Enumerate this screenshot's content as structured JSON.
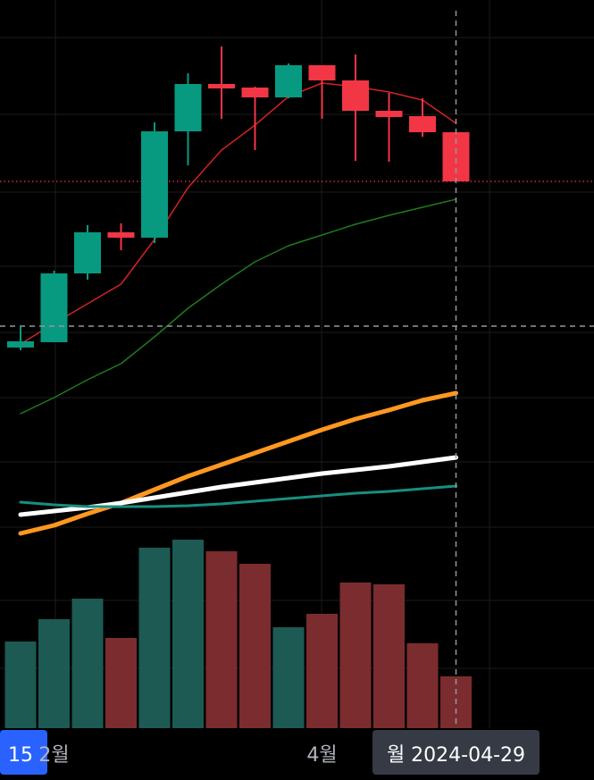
{
  "chart_data": {
    "type": "candlestick",
    "categories": [
      "15",
      "2월",
      null,
      null,
      null,
      null,
      null,
      null,
      null,
      "4월",
      null,
      null,
      null,
      "월 2024-04-29"
    ],
    "open": [
      426,
      432,
      509,
      555,
      549,
      668,
      721,
      717,
      706,
      742,
      725,
      691,
      685,
      667
    ],
    "high": [
      449,
      512,
      563,
      565,
      678,
      733,
      763,
      718,
      744,
      742,
      754,
      711,
      705,
      667
    ],
    "low": [
      423,
      432,
      502,
      535,
      543,
      630,
      682,
      647,
      705,
      682,
      635,
      634,
      662,
      612
    ],
    "close": [
      433,
      509,
      555,
      549,
      668,
      721,
      716,
      706,
      742,
      725,
      691,
      684,
      667,
      612
    ],
    "up_color": "#089981",
    "down_color": "#f23645",
    "ylim": [
      0,
      815
    ],
    "moving_averages": [
      {
        "color": "#ff9820",
        "values": [
          218,
          227,
          240,
          252,
          267,
          282,
          295,
          308,
          321,
          334,
          346,
          356,
          367,
          375
        ]
      },
      {
        "color": "#ffffff",
        "values": [
          239,
          243,
          247,
          252,
          258,
          264,
          270,
          275,
          280,
          285,
          289,
          293,
          298,
          303
        ]
      },
      {
        "color": "#16907f",
        "values": [
          253,
          250,
          248,
          248,
          248,
          249,
          251,
          254,
          257,
          260,
          263,
          265,
          268,
          271
        ]
      },
      {
        "color": "#1e7b1e",
        "values": [
          352,
          370,
          390,
          408,
          438,
          470,
          497,
          522,
          540,
          552,
          564,
          574,
          583,
          592
        ]
      },
      {
        "color": "#d32222",
        "values": [
          430,
          453,
          475,
          497,
          547,
          605,
          647,
          675,
          707,
          722,
          718,
          712,
          703,
          677
        ]
      }
    ],
    "volume": {
      "values": [
        97,
        122,
        145,
        101,
        202,
        211,
        198,
        184,
        113,
        128,
        163,
        161,
        95,
        58
      ],
      "ylim": [
        0,
        815
      ],
      "up_color": "#1c5a53",
      "down_color": "#7b2c2e"
    },
    "label_boxes": [
      {
        "index": 0,
        "color": "#2962ff"
      },
      {
        "index": 13,
        "color": "#363a45"
      }
    ],
    "crosshair": {
      "index": 13,
      "value": 450
    },
    "last_price_line": true
  }
}
